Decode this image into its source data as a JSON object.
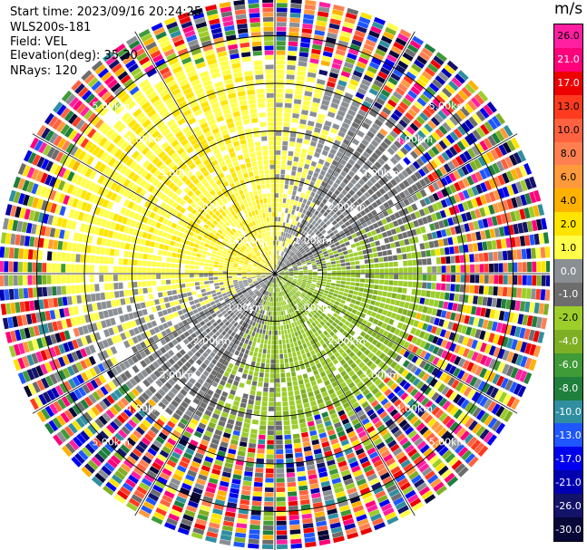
{
  "header": {
    "start_time": "Start time: 2023/09/16 20:24:25",
    "instrument": "WLS200s-181",
    "field": "Field: VEL",
    "elevation": "Elevation(deg): 35.30",
    "nrays": "NRays: 120"
  },
  "colorbar": {
    "unit": "m/s",
    "ticks": [
      "26.0",
      "21.0",
      "17.0",
      "13.0",
      "10.0",
      "8.0",
      "6.0",
      "4.0",
      "2.0",
      "1.0",
      "0.0",
      "-1.0",
      "-2.0",
      "-4.0",
      "-6.0",
      "-8.0",
      "-10.0",
      "-13.0",
      "-17.0",
      "-21.0",
      "-26.0",
      "-30.0"
    ],
    "colors": [
      "#ff1fa0",
      "#ff007a",
      "#ee0000",
      "#ff3b1f",
      "#ff6240",
      "#ff7f50",
      "#ff9a3c",
      "#ffb100",
      "#ffe400",
      "#ffff4a",
      "#8a8f94",
      "#6d6d6d",
      "#9ccd2b",
      "#7fb024",
      "#3f9a38",
      "#1f7f3c",
      "#2f8fa0",
      "#1f56ff",
      "#0000ee",
      "#0000b0",
      "#131369",
      "#070738"
    ]
  },
  "chart_data": {
    "type": "ppi",
    "field": "VEL",
    "units": "m/s",
    "elevation_deg": 35.3,
    "n_rays": 120,
    "range_rings_km": [
      1.0,
      2.0,
      3.0,
      4.0,
      5.0
    ],
    "ring_labels": [
      "1.00km",
      "2.00km",
      "3.00km",
      "4.00km",
      "5.00km"
    ],
    "max_range_km": 5.8,
    "azimuth_lines_deg": [
      0,
      30,
      60,
      90,
      120,
      150,
      180,
      210,
      240,
      270,
      300,
      330
    ],
    "vmin": -30.0,
    "vmax": 30.0,
    "bins_per_ray": 58,
    "near_field_pattern": {
      "noise_start_km": {
        "base": 3.8,
        "north_west": 4.9,
        "south_east": 3.2
      },
      "notes": "positive (yellow/orange) to the north-west, negative (green) to the south-east, gray near zero along the SW-NE axis"
    }
  }
}
